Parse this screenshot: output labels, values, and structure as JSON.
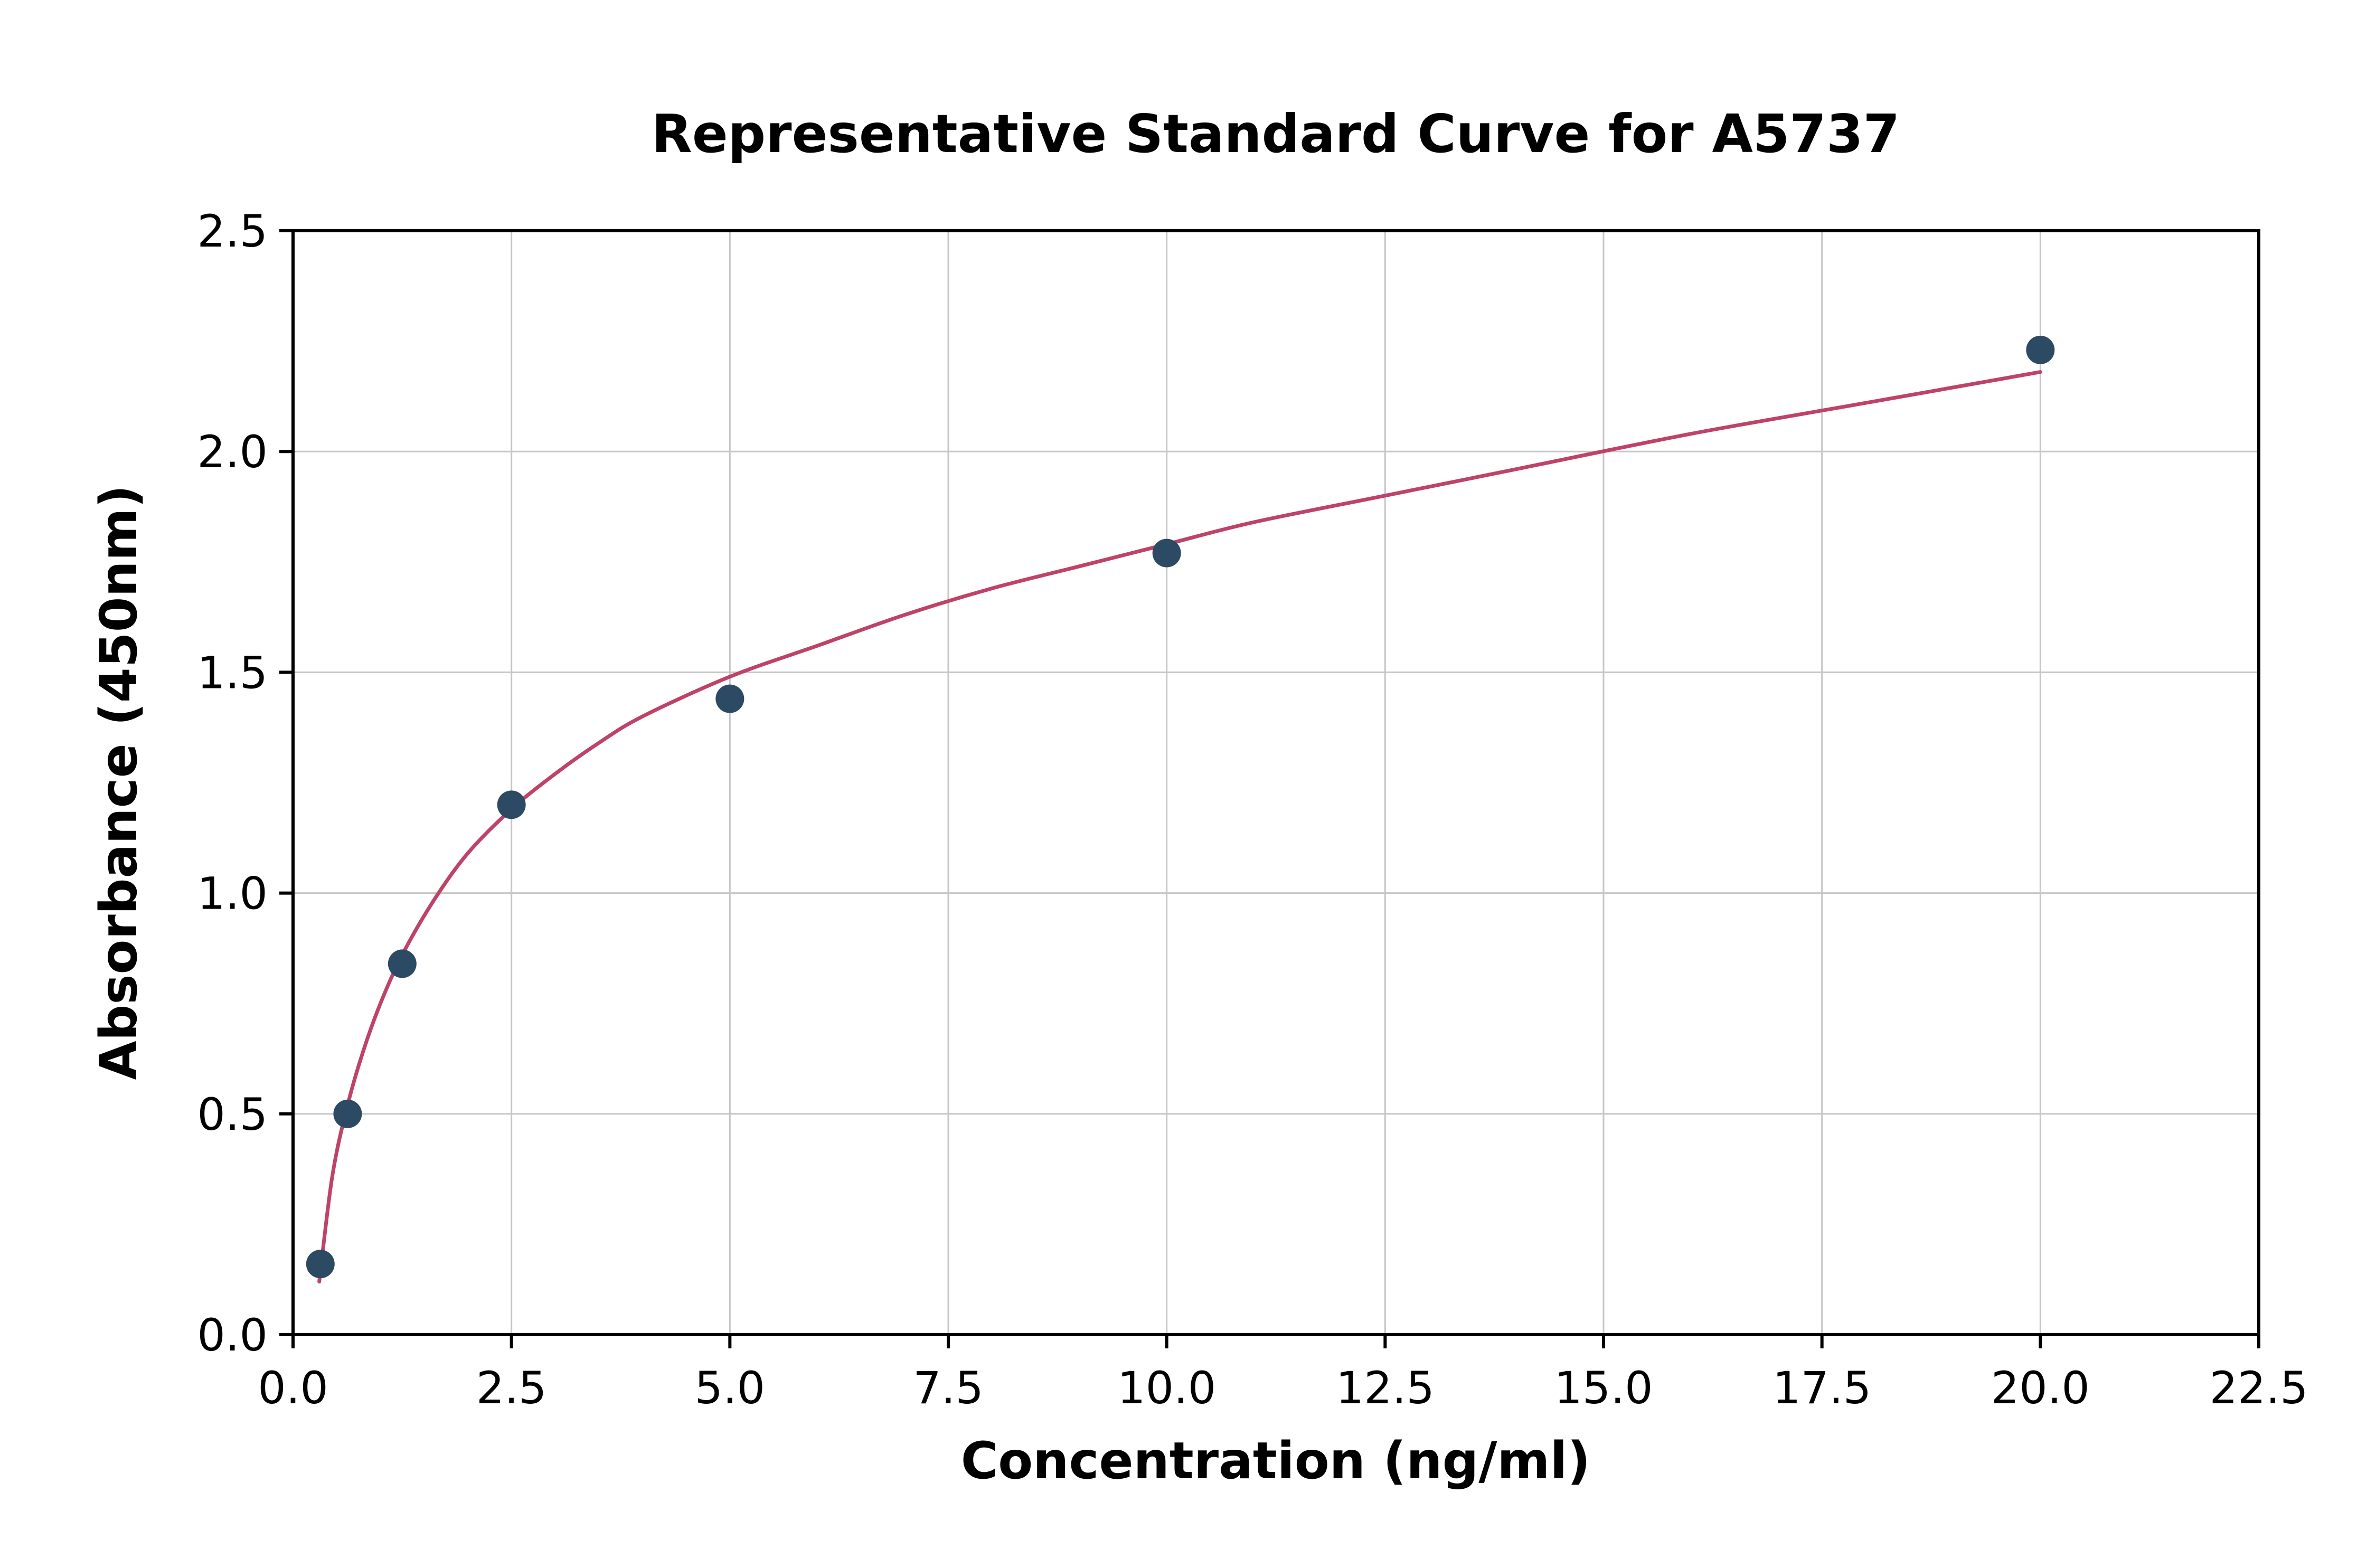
{
  "chart_data": {
    "type": "scatter",
    "title": "Representative Standard Curve for A5737",
    "xlabel": "Concentration (ng/ml)",
    "ylabel": "Absorbance (450nm)",
    "xlim": [
      0,
      22.5
    ],
    "ylim": [
      0,
      2.5
    ],
    "xticks": [
      0,
      2.5,
      5,
      7.5,
      10,
      12.5,
      15,
      17.5,
      20,
      22.5
    ],
    "xtick_labels": [
      "0.0",
      "2.5",
      "5.0",
      "7.5",
      "10.0",
      "12.5",
      "15.0",
      "17.5",
      "20.0",
      "22.5"
    ],
    "yticks": [
      0,
      0.5,
      1,
      1.5,
      2,
      2.5
    ],
    "ytick_labels": [
      "0.0",
      "0.5",
      "1.0",
      "1.5",
      "2.0",
      "2.5"
    ],
    "grid": true,
    "grid_color": "#c6c6c6",
    "axis_color": "#000000",
    "legend": "none",
    "series": [
      {
        "name": "standard-points",
        "type": "scatter",
        "color": "#2c4a63",
        "x": [
          0.313,
          0.625,
          1.25,
          2.5,
          5,
          10,
          20
        ],
        "y": [
          0.16,
          0.5,
          0.84,
          1.2,
          1.44,
          1.77,
          2.23
        ]
      },
      {
        "name": "fit-curve",
        "type": "line",
        "color": "#bf4269",
        "x": [
          0.3,
          0.45,
          0.625,
          0.8,
          1.0,
          1.25,
          1.6,
          2.0,
          2.5,
          3.0,
          3.5,
          4.0,
          5.0,
          6.0,
          7.0,
          8.0,
          9.0,
          10.0,
          11.0,
          12.5,
          14.0,
          16.0,
          18.0,
          20.0
        ],
        "y": [
          0.12,
          0.36,
          0.52,
          0.64,
          0.75,
          0.86,
          0.98,
          1.09,
          1.19,
          1.27,
          1.34,
          1.4,
          1.49,
          1.56,
          1.63,
          1.69,
          1.74,
          1.79,
          1.84,
          1.9,
          1.96,
          2.04,
          2.11,
          2.18
        ]
      }
    ]
  }
}
